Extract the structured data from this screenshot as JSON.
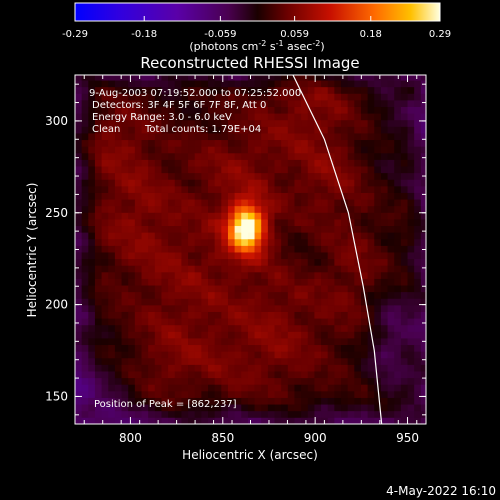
{
  "colorbar": {
    "ticks": [
      "-0.29",
      "-0.18",
      "-0.059",
      "0.059",
      "0.18",
      "0.29"
    ],
    "tick_values": [
      -0.29,
      -0.18,
      -0.059,
      0.059,
      0.18,
      0.29
    ],
    "range": [
      -0.29,
      0.29
    ],
    "label_main": "(photons cm",
    "label_sup1": "-2",
    "label_s": " s",
    "label_sup2": "-1",
    "label_end": " asec",
    "label_sup3": "-2",
    "label_close": ")"
  },
  "chart_data": {
    "type": "heatmap",
    "title": "Reconstructed RHESSI Image",
    "xlabel": "Heliocentric X (arcsec)",
    "ylabel": "Heliocentric Y (arcsec)",
    "xlim": [
      770,
      960
    ],
    "ylim": [
      135,
      325
    ],
    "xticks": [
      800,
      850,
      900,
      950
    ],
    "yticks": [
      150,
      200,
      250,
      300
    ],
    "xtick_labels": [
      "800",
      "850",
      "900",
      "950"
    ],
    "ytick_labels": [
      "150",
      "200",
      "250",
      "300"
    ],
    "peak": {
      "x": 862,
      "y": 237,
      "value": 0.29
    },
    "annotations": {
      "time": "9-Aug-2003 07:19:52.000 to 07:25:52.000",
      "detectors": "Detectors: 3F 4F 5F 6F 7F 8F, Att 0",
      "energy": "Energy Range: 3.0 - 6.0 keV",
      "method": "Clean",
      "counts": "Total counts: 1.79E+04",
      "peak_label": "Position of Peak = [862,237]"
    },
    "limb_arc": [
      [
        888,
        325
      ],
      [
        905,
        290
      ],
      [
        918,
        250
      ],
      [
        926,
        210
      ],
      [
        932,
        175
      ],
      [
        936,
        135
      ]
    ],
    "blobs": [
      {
        "x": 861,
        "y": 240,
        "sx": 6,
        "sy": 8,
        "amp": 0.27
      },
      {
        "x": 861,
        "y": 240,
        "sx": 13,
        "sy": 16,
        "amp": 0.06
      },
      {
        "x": 800,
        "y": 250,
        "sx": 18,
        "sy": 25,
        "amp": 0.05
      },
      {
        "x": 790,
        "y": 290,
        "sx": 14,
        "sy": 14,
        "amp": 0.04
      },
      {
        "x": 830,
        "y": 205,
        "sx": 22,
        "sy": 28,
        "amp": 0.045
      },
      {
        "x": 855,
        "y": 275,
        "sx": 20,
        "sy": 18,
        "amp": 0.04
      },
      {
        "x": 895,
        "y": 305,
        "sx": 20,
        "sy": 20,
        "amp": 0.05
      },
      {
        "x": 905,
        "y": 265,
        "sx": 14,
        "sy": 16,
        "amp": 0.04
      },
      {
        "x": 880,
        "y": 195,
        "sx": 18,
        "sy": 18,
        "amp": 0.04
      },
      {
        "x": 920,
        "y": 215,
        "sx": 14,
        "sy": 25,
        "amp": 0.04
      },
      {
        "x": 870,
        "y": 165,
        "sx": 25,
        "sy": 15,
        "amp": 0.035
      },
      {
        "x": 815,
        "y": 165,
        "sx": 18,
        "sy": 14,
        "amp": 0.03
      },
      {
        "x": 940,
        "y": 180,
        "sx": 10,
        "sy": 20,
        "amp": -0.06
      },
      {
        "x": 780,
        "y": 150,
        "sx": 15,
        "sy": 15,
        "amp": -0.05
      },
      {
        "x": 950,
        "y": 300,
        "sx": 15,
        "sy": 25,
        "amp": -0.03
      }
    ]
  },
  "footer": {
    "date": "4-May-2022 16:10"
  }
}
